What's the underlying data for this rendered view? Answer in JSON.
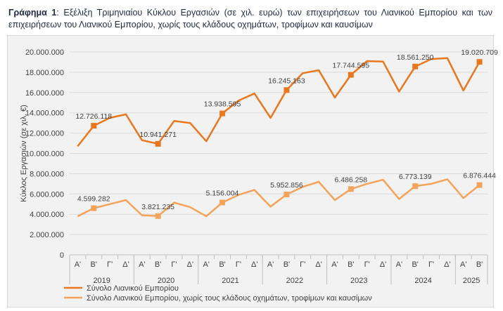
{
  "caption": {
    "label": "Γράφημα 1",
    "text": ": Εξέλιξη Τριμηνιαίου Κύκλου Εργασιών (σε χιλ. ευρώ) των επιχειρήσεων του Λιανικού Εμπορίου και των επιχειρήσεων του Λιανικού Εμπορίου, χωρίς τους κλάδους οχημάτων, τροφίμων και καυσίμων"
  },
  "chart_data": {
    "type": "line",
    "ylabel": "Κύκλος Εργασιών (σε χιλ. €)",
    "ylim": [
      0,
      20000000
    ],
    "ytick_step": 2000000,
    "ytick_labels": [
      "0",
      "2.000.000",
      "4.000.000",
      "6.000.000",
      "8.000.000",
      "10.000.000",
      "12.000.000",
      "14.000.000",
      "16.000.000",
      "18.000.000",
      "20.000.000"
    ],
    "grid": true,
    "legend": "bottom",
    "quarters": [
      "Α'",
      "Β'",
      "Γ'",
      "Δ'",
      "Α'",
      "Β'",
      "Γ'",
      "Δ'",
      "Α'",
      "Β'",
      "Γ'",
      "Δ'",
      "Α'",
      "Β'",
      "Γ'",
      "Δ'",
      "Α'",
      "Β'",
      "Γ'",
      "Δ'",
      "Α'",
      "Β'",
      "Γ'",
      "Δ'",
      "Α'",
      "Β'"
    ],
    "years": [
      {
        "label": "2019",
        "count": 4
      },
      {
        "label": "2020",
        "count": 4
      },
      {
        "label": "2021",
        "count": 4
      },
      {
        "label": "2022",
        "count": 4
      },
      {
        "label": "2023",
        "count": 4
      },
      {
        "label": "2024",
        "count": 4
      },
      {
        "label": "2025",
        "count": 2
      }
    ],
    "series": [
      {
        "name": "Σύνολο Λιανικού Εμπορίου",
        "color": "#e8771e",
        "values": [
          10700000,
          12726118,
          13500000,
          13850000,
          11300000,
          10941271,
          13200000,
          13000000,
          11200000,
          13938595,
          15200000,
          15900000,
          13500000,
          16245163,
          17900000,
          18200000,
          15500000,
          17744595,
          19100000,
          19050000,
          16100000,
          18561250,
          19300000,
          19400000,
          16200000,
          19020709
        ],
        "labeled": [
          1,
          5,
          9,
          13,
          17,
          21,
          25
        ],
        "labels": [
          "12.726.118",
          "10.941.271",
          "13.938.595",
          "16.245.163",
          "17.744.595",
          "18.561.250",
          "19.020.709"
        ]
      },
      {
        "name": "Σύνολο Λιανικού Εμπορίου, χωρίς τους κλάδους οχημάτων, τροφίμων και καυσίμων",
        "color": "#f3a35a",
        "values": [
          3800000,
          4599282,
          5000000,
          5400000,
          3900000,
          3821235,
          5150000,
          4700000,
          3800000,
          5156004,
          5900000,
          6400000,
          4750000,
          5952856,
          6700000,
          7200000,
          5400000,
          6486258,
          7000000,
          7400000,
          5500000,
          6773139,
          7000000,
          7450000,
          5600000,
          6876444
        ],
        "labeled": [
          1,
          5,
          9,
          13,
          17,
          21,
          25
        ],
        "labels": [
          "4.599.282",
          "3.821.235",
          "5.156.004",
          "5.952.856",
          "6.486.258",
          "6.773.139",
          "6.876.444"
        ]
      }
    ]
  }
}
